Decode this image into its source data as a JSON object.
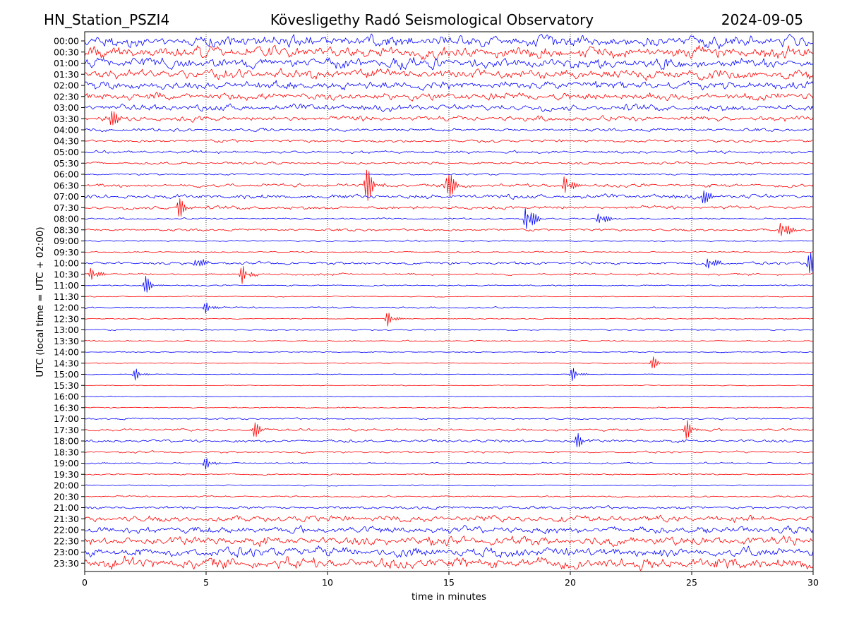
{
  "header": {
    "station": "HN_Station_PSZI4",
    "observatory": "Kövesligethy Radó Seismological Observatory",
    "date": "2024-09-05"
  },
  "chart_data": {
    "type": "line",
    "title": "Kövesligethy Radó Seismological Observatory",
    "xlabel": "time in minutes",
    "ylabel": "UTC (local time = UTC + 02:00)",
    "xlim": [
      0,
      30
    ],
    "x_ticks": [
      "0",
      "5",
      "10",
      "15",
      "20",
      "25",
      "30"
    ],
    "vertical_grid_at_minutes": [
      5,
      10,
      15,
      20,
      25
    ],
    "grid": "dotted vertical lines",
    "trace_colors": [
      "#0000ff",
      "#ff0000"
    ],
    "rows": [
      {
        "label": "00:00",
        "amplitude": 1.0
      },
      {
        "label": "00:30",
        "amplitude": 1.0
      },
      {
        "label": "01:00",
        "amplitude": 0.9
      },
      {
        "label": "01:30",
        "amplitude": 0.85
      },
      {
        "label": "02:00",
        "amplitude": 0.75
      },
      {
        "label": "02:30",
        "amplitude": 0.65
      },
      {
        "label": "03:00",
        "amplitude": 0.55
      },
      {
        "label": "03:30",
        "amplitude": 0.45
      },
      {
        "label": "04:00",
        "amplitude": 0.28
      },
      {
        "label": "04:30",
        "amplitude": 0.25
      },
      {
        "label": "05:00",
        "amplitude": 0.25
      },
      {
        "label": "05:30",
        "amplitude": 0.22
      },
      {
        "label": "06:00",
        "amplitude": 0.15
      },
      {
        "label": "06:30",
        "amplitude": 0.32
      },
      {
        "label": "07:00",
        "amplitude": 0.38
      },
      {
        "label": "07:30",
        "amplitude": 0.3
      },
      {
        "label": "08:00",
        "amplitude": 0.15
      },
      {
        "label": "08:30",
        "amplitude": 0.22
      },
      {
        "label": "09:00",
        "amplitude": 0.14
      },
      {
        "label": "09:30",
        "amplitude": 0.12
      },
      {
        "label": "10:00",
        "amplitude": 0.25
      },
      {
        "label": "10:30",
        "amplitude": 0.2
      },
      {
        "label": "11:00",
        "amplitude": 0.12
      },
      {
        "label": "11:30",
        "amplitude": 0.08
      },
      {
        "label": "12:00",
        "amplitude": 0.14
      },
      {
        "label": "12:30",
        "amplitude": 0.1
      },
      {
        "label": "13:00",
        "amplitude": 0.12
      },
      {
        "label": "13:30",
        "amplitude": 0.12
      },
      {
        "label": "14:00",
        "amplitude": 0.08
      },
      {
        "label": "14:30",
        "amplitude": 0.08
      },
      {
        "label": "15:00",
        "amplitude": 0.07
      },
      {
        "label": "15:30",
        "amplitude": 0.07
      },
      {
        "label": "16:00",
        "amplitude": 0.07
      },
      {
        "label": "16:30",
        "amplitude": 0.1
      },
      {
        "label": "17:00",
        "amplitude": 0.16
      },
      {
        "label": "17:30",
        "amplitude": 0.22
      },
      {
        "label": "18:00",
        "amplitude": 0.25
      },
      {
        "label": "18:30",
        "amplitude": 0.18
      },
      {
        "label": "19:00",
        "amplitude": 0.15
      },
      {
        "label": "19:30",
        "amplitude": 0.12
      },
      {
        "label": "20:00",
        "amplitude": 0.1
      },
      {
        "label": "20:30",
        "amplitude": 0.14
      },
      {
        "label": "21:00",
        "amplitude": 0.28
      },
      {
        "label": "21:30",
        "amplitude": 0.55
      },
      {
        "label": "22:00",
        "amplitude": 0.6
      },
      {
        "label": "22:30",
        "amplitude": 0.75
      },
      {
        "label": "23:00",
        "amplitude": 0.85
      },
      {
        "label": "23:30",
        "amplitude": 1.0
      }
    ],
    "events": [
      {
        "row": "03:30",
        "minute": 1.1,
        "amplitude": 1.0
      },
      {
        "row": "06:30",
        "minute": 11.6,
        "amplitude": 2.0
      },
      {
        "row": "06:30",
        "minute": 14.9,
        "amplitude": 2.2
      },
      {
        "row": "06:30",
        "minute": 19.8,
        "amplitude": 1.3
      },
      {
        "row": "07:00",
        "minute": 25.4,
        "amplitude": 1.2
      },
      {
        "row": "07:30",
        "minute": 3.9,
        "amplitude": 1.0
      },
      {
        "row": "08:00",
        "minute": 18.2,
        "amplitude": 2.2
      },
      {
        "row": "08:00",
        "minute": 21.2,
        "amplitude": 1.0
      },
      {
        "row": "08:30",
        "minute": 28.7,
        "amplitude": 1.4
      },
      {
        "row": "10:00",
        "minute": 4.6,
        "amplitude": 0.9
      },
      {
        "row": "10:00",
        "minute": 25.7,
        "amplitude": 1.0
      },
      {
        "row": "10:00",
        "minute": 29.8,
        "amplitude": 1.7
      },
      {
        "row": "10:30",
        "minute": 0.3,
        "amplitude": 0.9
      },
      {
        "row": "10:30",
        "minute": 6.5,
        "amplitude": 1.0
      },
      {
        "row": "11:00",
        "minute": 2.5,
        "amplitude": 0.9
      },
      {
        "row": "12:00",
        "minute": 5.0,
        "amplitude": 0.6
      },
      {
        "row": "12:30",
        "minute": 12.5,
        "amplitude": 0.8
      },
      {
        "row": "14:30",
        "minute": 23.4,
        "amplitude": 0.6
      },
      {
        "row": "15:00",
        "minute": 2.1,
        "amplitude": 0.6
      },
      {
        "row": "15:00",
        "minute": 20.1,
        "amplitude": 0.7
      },
      {
        "row": "17:30",
        "minute": 7.0,
        "amplitude": 0.8
      },
      {
        "row": "17:30",
        "minute": 24.8,
        "amplitude": 0.9
      },
      {
        "row": "18:00",
        "minute": 20.3,
        "amplitude": 0.7
      },
      {
        "row": "19:00",
        "minute": 5.0,
        "amplitude": 0.7
      }
    ]
  }
}
